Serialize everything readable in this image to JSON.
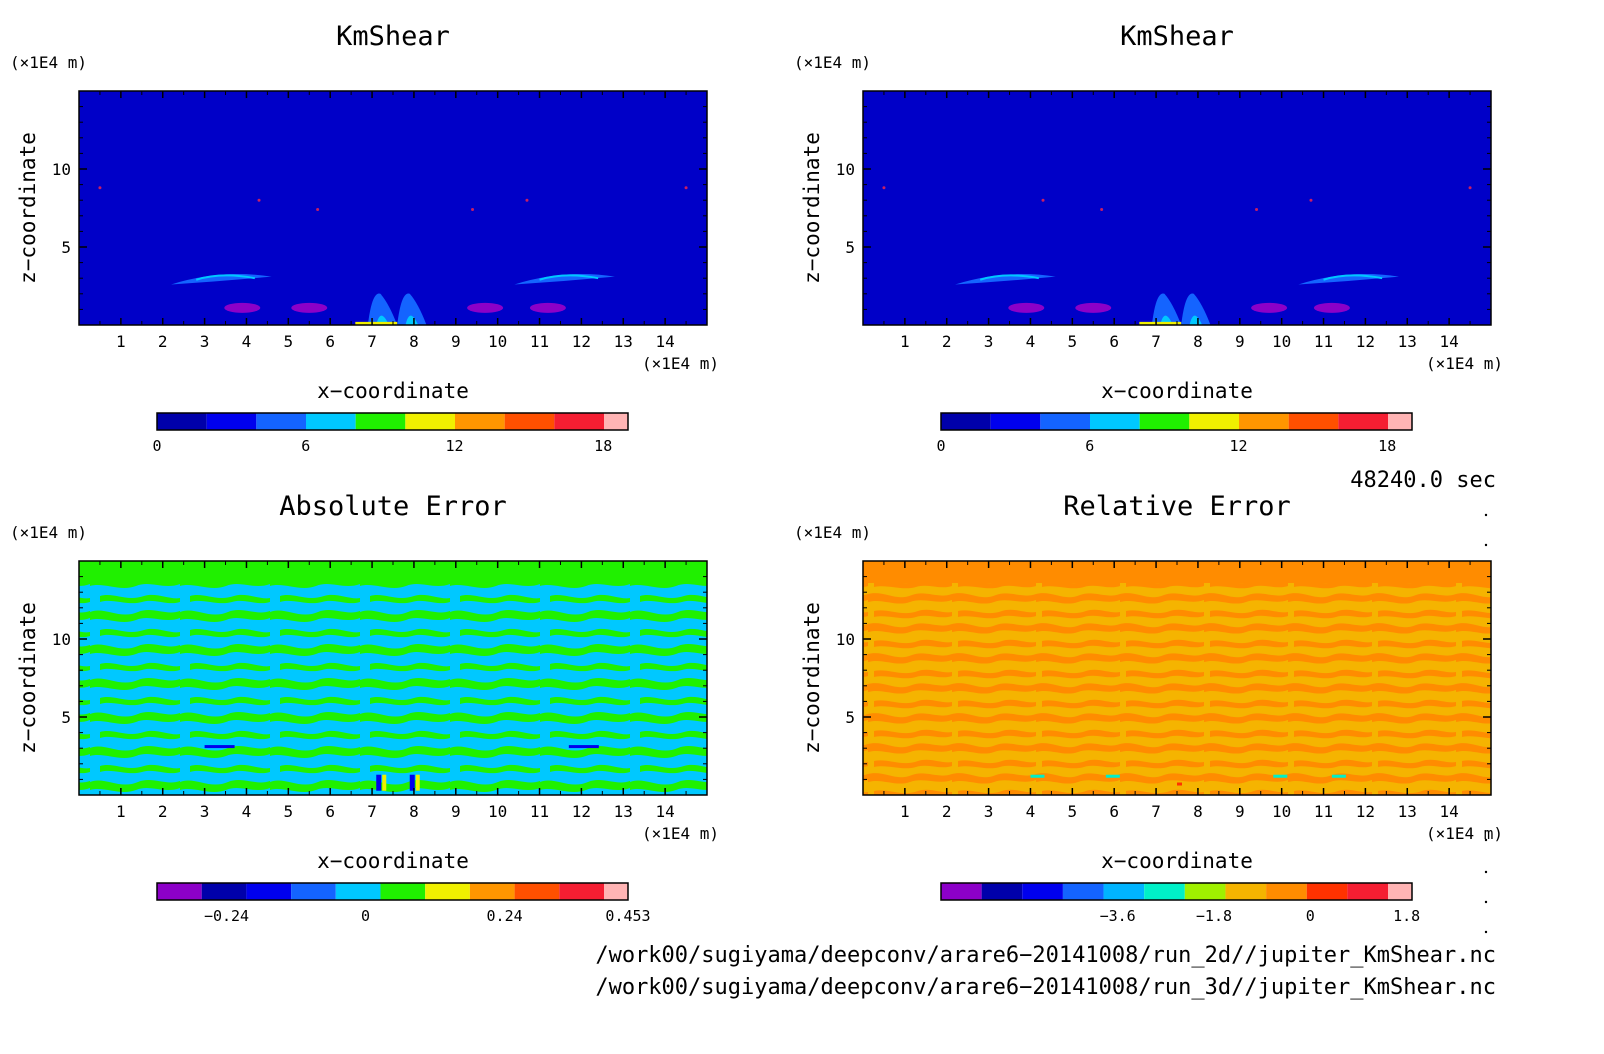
{
  "panels": [
    {
      "title": "KmShear",
      "xlabel": "x−coordinate",
      "ylabel": "z−coordinate",
      "xunit": "(×1E4 m)",
      "yunit": "(×1E4 m)",
      "background": "#0000c8",
      "colorbar": {
        "colors": [
          "#0000aa",
          "#0000ee",
          "#1464ff",
          "#00c8ff",
          "#20f000",
          "#f0f000",
          "#ff9600",
          "#ff5000",
          "#f51e32",
          "#ffb4b4"
        ],
        "ticks": [
          {
            "v": 0,
            "label": "0"
          },
          {
            "v": 6,
            "label": "6"
          },
          {
            "v": 12,
            "label": "12"
          },
          {
            "v": 18,
            "label": "18"
          }
        ],
        "range": [
          0,
          19
        ]
      }
    },
    {
      "title": "KmShear",
      "xlabel": "x−coordinate",
      "ylabel": "z−coordinate",
      "xunit": "(×1E4 m)",
      "yunit": "(×1E4 m)",
      "background": "#0000c8",
      "colorbar": {
        "colors": [
          "#0000aa",
          "#0000ee",
          "#1464ff",
          "#00c8ff",
          "#20f000",
          "#f0f000",
          "#ff9600",
          "#ff5000",
          "#f51e32",
          "#ffb4b4"
        ],
        "ticks": [
          {
            "v": 0,
            "label": "0"
          },
          {
            "v": 6,
            "label": "6"
          },
          {
            "v": 12,
            "label": "12"
          },
          {
            "v": 18,
            "label": "18"
          }
        ],
        "range": [
          0,
          19
        ]
      }
    },
    {
      "title": "Absolute Error",
      "xlabel": "x−coordinate",
      "ylabel": "z−coordinate",
      "xunit": "(×1E4 m)",
      "yunit": "(×1E4 m)",
      "background": "#00c8ff",
      "colorbar": {
        "colors": [
          "#8c00c8",
          "#0000aa",
          "#0000ee",
          "#1464ff",
          "#00c8ff",
          "#20f000",
          "#f0f000",
          "#ff9600",
          "#ff5000",
          "#f51e32",
          "#ffb4b4"
        ],
        "ticks": [
          {
            "v": -0.24,
            "label": "−0.24"
          },
          {
            "v": 0,
            "label": "0"
          },
          {
            "v": 0.24,
            "label": "0.24"
          },
          {
            "v": 0.453,
            "label": "0.453"
          }
        ],
        "range": [
          -0.36,
          0.453
        ]
      }
    },
    {
      "title": "Relative Error",
      "xlabel": "x−coordinate",
      "ylabel": "z−coordinate",
      "xunit": "(×1E4 m)",
      "yunit": "(×1E4 m)",
      "background": "#f5b400",
      "colorbar": {
        "colors": [
          "#8c00c8",
          "#0000aa",
          "#0000ee",
          "#1464ff",
          "#00b4ff",
          "#00f0c8",
          "#a0f000",
          "#f5b400",
          "#ff8c00",
          "#ff3200",
          "#f51e32",
          "#ffb4b4"
        ],
        "ticks": [
          {
            "v": -3.6,
            "label": "−3.6"
          },
          {
            "v": -1.8,
            "label": "−1.8"
          },
          {
            "v": 0,
            "label": "0"
          },
          {
            "v": 1.8,
            "label": "1.8"
          }
        ],
        "range": [
          -6.9,
          1.9
        ]
      }
    }
  ],
  "time_label": "48240.0 sec",
  "footer": [
    "/work00/sugiyama/deepconv/arare6−20141008/run_2d//jupiter_KmShear.nc",
    "/work00/sugiyama/deepconv/arare6−20141008/run_3d//jupiter_KmShear.nc"
  ],
  "chart_data": [
    {
      "type": "heatmap",
      "title": "KmShear",
      "xlabel": "x−coordinate",
      "ylabel": "z−coordinate",
      "xlim": [
        0,
        15
      ],
      "ylim": [
        0,
        15
      ],
      "xticks": [
        1,
        2,
        3,
        4,
        5,
        6,
        7,
        8,
        9,
        10,
        11,
        12,
        13,
        14
      ],
      "yticks": [
        5,
        10
      ],
      "colorbar_range": [
        0,
        19
      ],
      "colorbar_ticks": [
        0,
        6,
        12,
        18
      ],
      "features": [
        {
          "level": "low",
          "x": [
            2.2,
            4.6
          ],
          "z": [
            2.5,
            3.3
          ]
        },
        {
          "level": "low",
          "x": [
            10.4,
            12.8
          ],
          "z": [
            2.5,
            3.3
          ]
        },
        {
          "level": "mid",
          "x": [
            6.6,
            8.4
          ],
          "z": [
            0,
            2
          ]
        }
      ]
    },
    {
      "type": "heatmap",
      "title": "KmShear",
      "xlabel": "x−coordinate",
      "ylabel": "z−coordinate",
      "xlim": [
        0,
        15
      ],
      "ylim": [
        0,
        15
      ],
      "xticks": [
        1,
        2,
        3,
        4,
        5,
        6,
        7,
        8,
        9,
        10,
        11,
        12,
        13,
        14
      ],
      "yticks": [
        5,
        10
      ],
      "colorbar_range": [
        0,
        19
      ],
      "colorbar_ticks": [
        0,
        6,
        12,
        18
      ]
    },
    {
      "type": "heatmap",
      "title": "Absolute Error",
      "xlabel": "x−coordinate",
      "ylabel": "z−coordinate",
      "xlim": [
        0,
        15
      ],
      "ylim": [
        0,
        15
      ],
      "xticks": [
        1,
        2,
        3,
        4,
        5,
        6,
        7,
        8,
        9,
        10,
        11,
        12,
        13,
        14
      ],
      "yticks": [
        5,
        10
      ],
      "colorbar_range": [
        -0.36,
        0.453
      ],
      "colorbar_ticks": [
        -0.24,
        0,
        0.24,
        0.453
      ]
    },
    {
      "type": "heatmap",
      "title": "Relative Error",
      "xlabel": "x−coordinate",
      "ylabel": "z−coordinate",
      "xlim": [
        0,
        15
      ],
      "ylim": [
        0,
        15
      ],
      "xticks": [
        1,
        2,
        3,
        4,
        5,
        6,
        7,
        8,
        9,
        10,
        11,
        12,
        13,
        14
      ],
      "yticks": [
        5,
        10
      ],
      "colorbar_range": [
        -6.9,
        1.9
      ],
      "colorbar_ticks": [
        -3.6,
        -1.8,
        0,
        1.8
      ]
    }
  ]
}
